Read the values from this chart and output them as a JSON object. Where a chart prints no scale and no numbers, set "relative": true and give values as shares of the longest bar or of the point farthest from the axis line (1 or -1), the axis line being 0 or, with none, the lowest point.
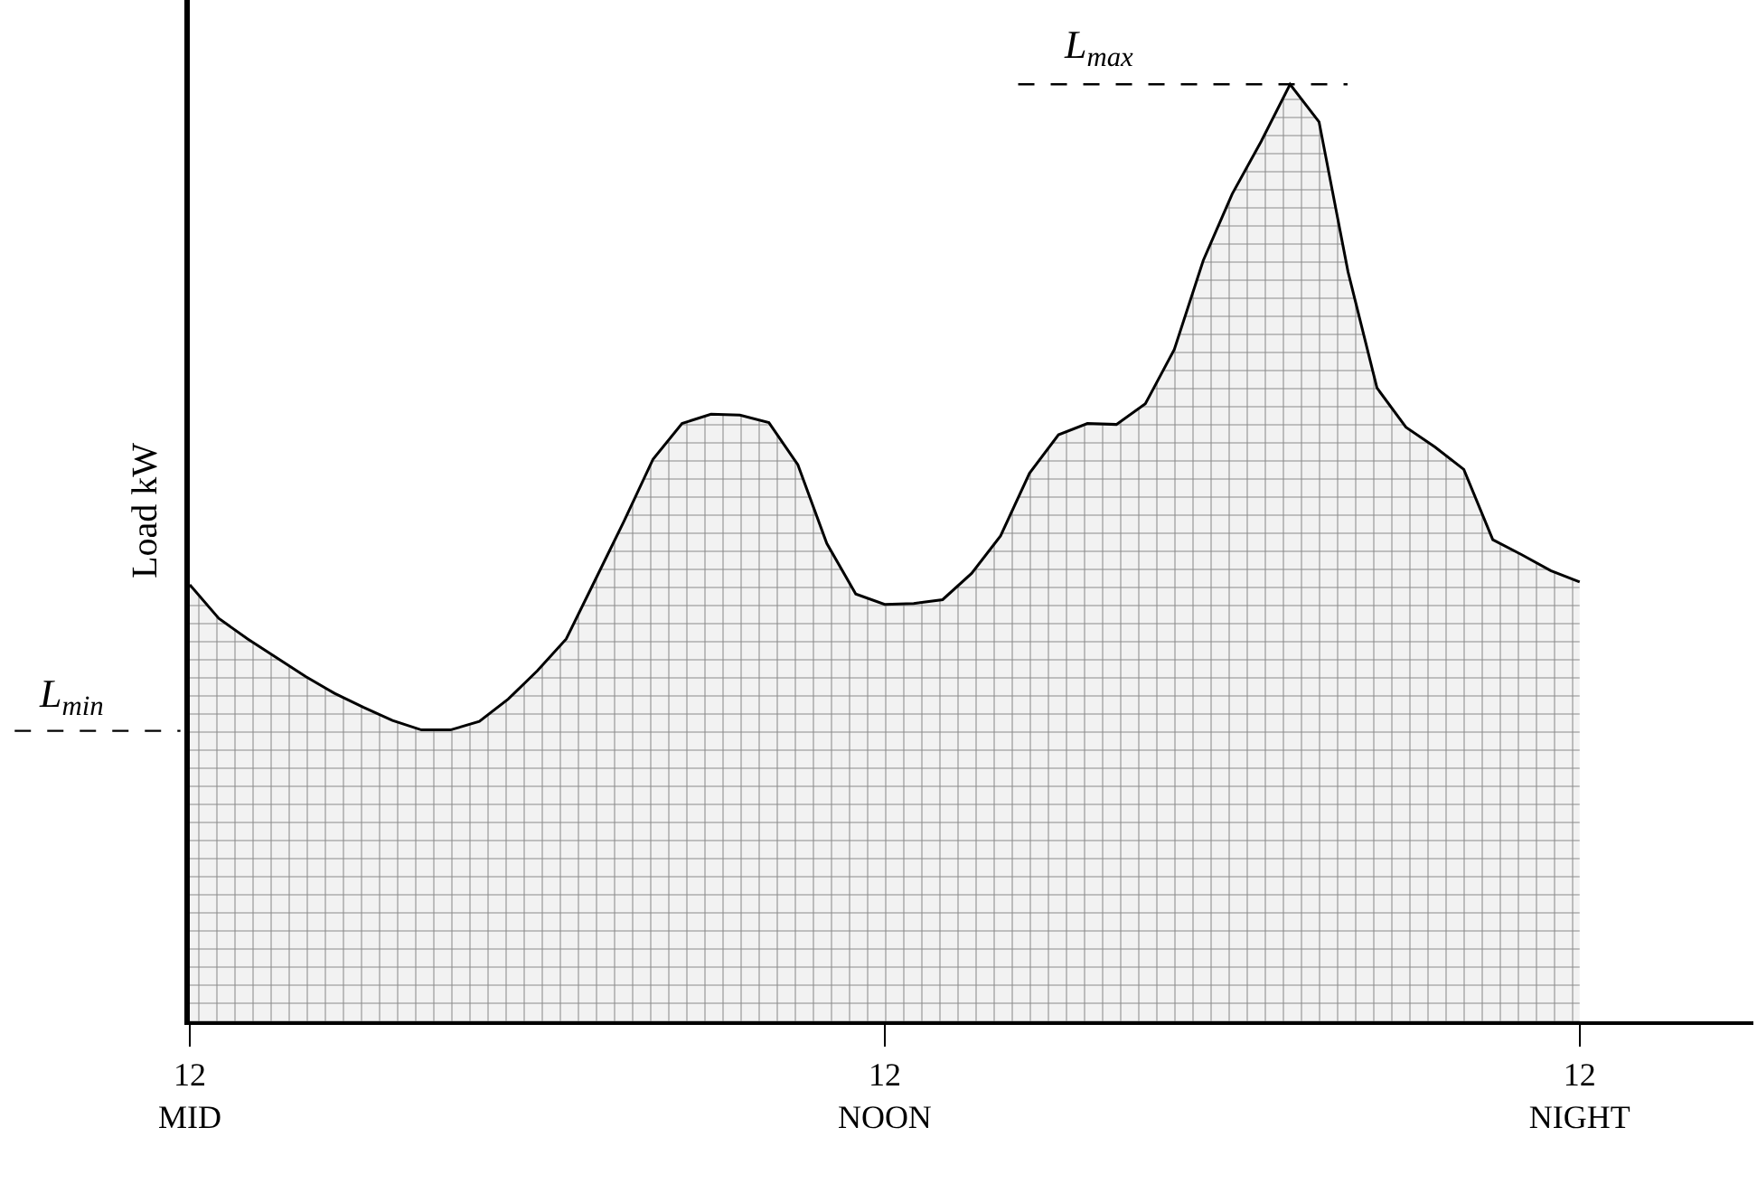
{
  "chart_data": {
    "type": "area",
    "relative": true,
    "ylabel": "Load kW",
    "color": "#000000",
    "categories": [
      "12\nMID",
      null,
      null,
      null,
      null,
      null,
      null,
      null,
      null,
      null,
      null,
      null,
      null,
      null,
      null,
      null,
      null,
      null,
      null,
      null,
      null,
      null,
      null,
      null,
      "12\nNOON",
      null,
      null,
      null,
      null,
      null,
      null,
      null,
      null,
      null,
      null,
      null,
      null,
      null,
      null,
      null,
      null,
      null,
      null,
      null,
      null,
      null,
      null,
      null,
      "12\nNIGHT"
    ],
    "values": [
      0.466,
      0.43,
      0.408,
      0.388,
      0.368,
      0.35,
      0.335,
      0.321,
      0.311,
      0.311,
      0.32,
      0.344,
      0.374,
      0.408,
      0.471,
      0.534,
      0.6,
      0.638,
      0.648,
      0.647,
      0.639,
      0.594,
      0.51,
      0.456,
      0.445,
      0.446,
      0.45,
      0.478,
      0.518,
      0.585,
      0.626,
      0.638,
      0.637,
      0.659,
      0.717,
      0.812,
      0.883,
      0.939,
      1.0,
      0.96,
      0.8,
      0.676,
      0.634,
      0.613,
      0.589,
      0.514,
      0.498,
      0.481,
      0.469
    ],
    "ref_lines": [
      {
        "axis": "y",
        "value": 0.31,
        "label": "L$_{min}$",
        "line_style": "dashed"
      },
      {
        "axis": "y",
        "value": 1.0,
        "label": "L$_{max}$",
        "line_style": "dashed"
      }
    ]
  }
}
